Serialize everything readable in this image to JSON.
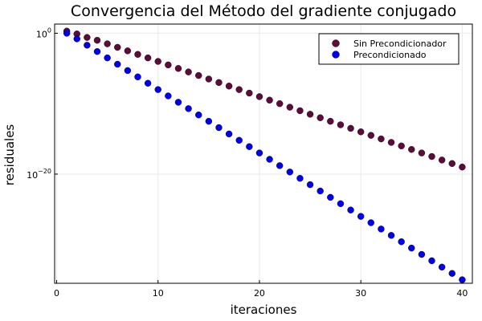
{
  "chart_data": {
    "type": "scatter",
    "title": "Convergencia del Método del gradiente conjugado",
    "xlabel": "iteraciones",
    "ylabel": "residuales",
    "xlim": [
      -0.2,
      41
    ],
    "ylim_log10": [
      -35.5,
      1.3
    ],
    "yscale": "log10",
    "grid": true,
    "legend_position": "top-right",
    "x_ticks": [
      {
        "value": 0,
        "label": "0"
      },
      {
        "value": 10,
        "label": "10"
      },
      {
        "value": 20,
        "label": "20"
      },
      {
        "value": 30,
        "label": "30"
      },
      {
        "value": 40,
        "label": "40"
      }
    ],
    "y_ticks": [
      {
        "log10": 0,
        "base": "10",
        "exp": "0"
      },
      {
        "log10": -20,
        "base": "10",
        "exp": "−20"
      }
    ],
    "series": [
      {
        "name": "Sin Precondicionador",
        "color": "#5e0a3b",
        "x": [
          1,
          2,
          3,
          4,
          5,
          6,
          7,
          8,
          9,
          10,
          11,
          12,
          13,
          14,
          15,
          16,
          17,
          18,
          19,
          20,
          21,
          22,
          23,
          24,
          25,
          26,
          27,
          28,
          29,
          30,
          31,
          32,
          33,
          34,
          35,
          36,
          37,
          38,
          39,
          40
        ],
        "log10_y": [
          0.3,
          -0.1,
          -0.6,
          -1.0,
          -1.5,
          -2.0,
          -2.5,
          -3.0,
          -3.5,
          -4.0,
          -4.5,
          -5.0,
          -5.5,
          -6.0,
          -6.5,
          -7.0,
          -7.5,
          -8.0,
          -8.5,
          -9.0,
          -9.5,
          -10.0,
          -10.5,
          -11.0,
          -11.5,
          -12.0,
          -12.5,
          -13.0,
          -13.5,
          -14.0,
          -14.5,
          -15.0,
          -15.5,
          -16.0,
          -16.5,
          -17.0,
          -17.5,
          -18.0,
          -18.5,
          -19.0
        ]
      },
      {
        "name": "Precondicionado",
        "color": "#0000ee",
        "x": [
          1,
          2,
          3,
          4,
          5,
          6,
          7,
          8,
          9,
          10,
          11,
          12,
          13,
          14,
          15,
          16,
          17,
          18,
          19,
          20,
          21,
          22,
          23,
          24,
          25,
          26,
          27,
          28,
          29,
          30,
          31,
          32,
          33,
          34,
          35,
          36,
          37,
          38,
          39,
          40
        ],
        "log10_y": [
          0.0,
          -0.8,
          -1.7,
          -2.6,
          -3.5,
          -4.4,
          -5.3,
          -6.2,
          -7.1,
          -8.0,
          -8.9,
          -9.8,
          -10.7,
          -11.6,
          -12.5,
          -13.4,
          -14.3,
          -15.2,
          -16.1,
          -17.0,
          -17.9,
          -18.8,
          -19.7,
          -20.6,
          -21.5,
          -22.4,
          -23.3,
          -24.2,
          -25.1,
          -26.0,
          -26.9,
          -27.8,
          -28.7,
          -29.6,
          -30.5,
          -31.4,
          -32.3,
          -33.2,
          -34.1,
          -35.0
        ]
      }
    ]
  }
}
